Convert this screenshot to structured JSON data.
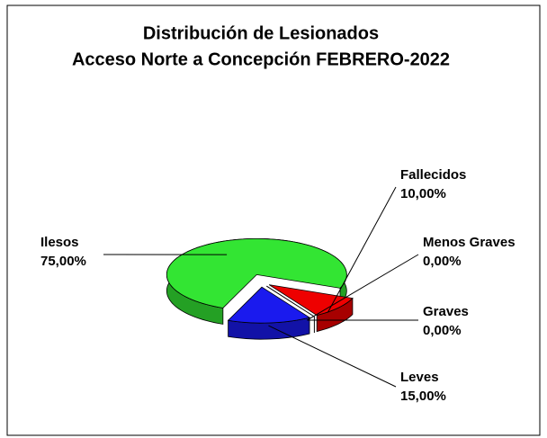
{
  "chart_data": {
    "type": "pie",
    "title": [
      "Distribución de Lesionados",
      "Acceso Norte a Concepción FEBRERO-2022"
    ],
    "categories": [
      "Ilesos",
      "Fallecidos",
      "Menos Graves",
      "Graves",
      "Leves"
    ],
    "values": [
      75,
      10,
      0,
      0,
      15
    ],
    "value_labels": [
      "75,00%",
      "10,00%",
      "0,00%",
      "0,00%",
      "15,00%"
    ],
    "colors": [
      "#33e533",
      "#ee0000",
      "#f3d36b",
      "#e8b430",
      "#1a1aee"
    ]
  }
}
